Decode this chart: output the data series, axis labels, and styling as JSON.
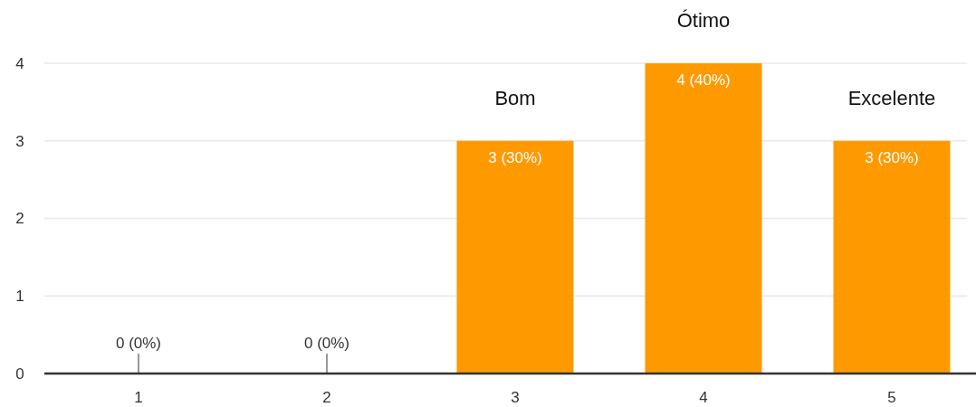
{
  "chart_data": {
    "type": "bar",
    "categories": [
      "1",
      "2",
      "3",
      "4",
      "5"
    ],
    "values": [
      0,
      0,
      3,
      4,
      3
    ],
    "color": "#ff9900",
    "value_labels": [
      "0 (0%)",
      "0 (0%)",
      "3 (30%)",
      "4 (40%)",
      "3 (30%)"
    ],
    "ylim": [
      0,
      4
    ],
    "yticks": [
      0,
      1,
      2,
      3,
      4
    ],
    "grid": "y",
    "annotations": [
      {
        "text": "Bom",
        "x": "3",
        "y": 3
      },
      {
        "text": "Ótimo",
        "x": "4",
        "y": 4
      },
      {
        "text": "Excelente",
        "x": "5",
        "y": 3
      }
    ]
  }
}
